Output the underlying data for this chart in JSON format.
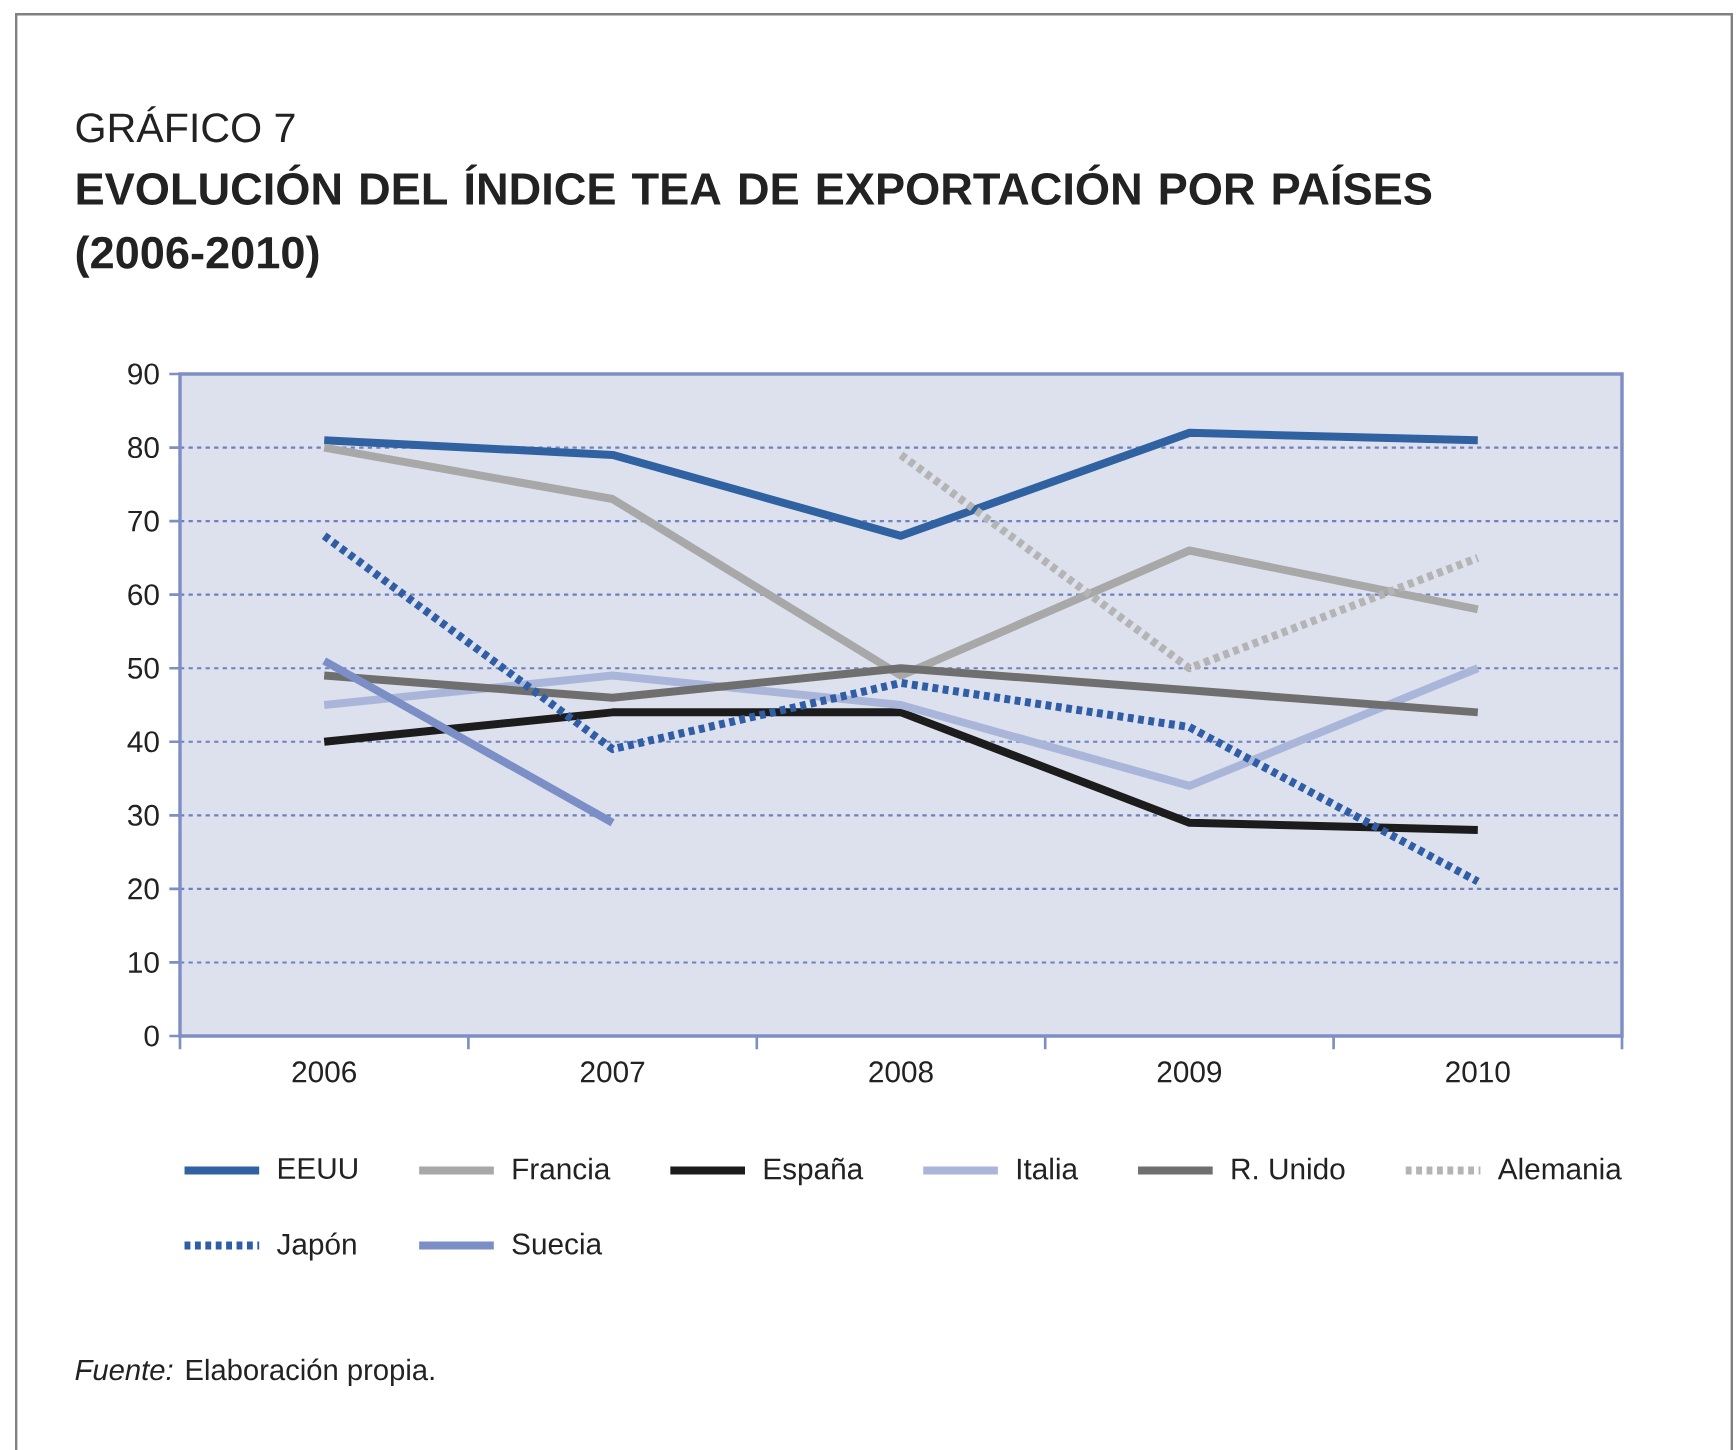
{
  "chart_data": {
    "type": "line",
    "title": "EVOLUCIÓN DEL ÍNDICE TEA DE EXPORTACIÓN POR PAÍSES (2006-2010)",
    "annotations": [
      "GRÁFICO 7",
      "*Fuente:* Elaboración propia."
    ],
    "categories": [
      "2006",
      "2007",
      "2008",
      "2009",
      "2010"
    ],
    "series": [
      {
        "name": "EEUU",
        "color": "#3062a2",
        "line_style": "solid",
        "values": [
          81,
          79,
          68,
          82,
          81
        ]
      },
      {
        "name": "Francia",
        "color": "#a8a8a8",
        "line_style": "solid",
        "values": [
          80,
          73,
          49,
          66,
          58
        ]
      },
      {
        "name": "España",
        "color": "#1c1c1c",
        "line_style": "solid",
        "values": [
          40,
          44,
          44,
          29,
          28
        ]
      },
      {
        "name": "Italia",
        "color": "#a9b6da",
        "line_style": "solid",
        "values": [
          45,
          49,
          45,
          34,
          50
        ]
      },
      {
        "name": "R. Unido",
        "color": "#6f6f6f",
        "line_style": "solid",
        "values": [
          49,
          46,
          50,
          47,
          44
        ]
      },
      {
        "name": "Alemania",
        "color": "#b4b4b4",
        "line_style": "dotted",
        "values": [
          null,
          null,
          79,
          50,
          65
        ]
      },
      {
        "name": "Japón",
        "color": "#2f5ea6",
        "line_style": "dotted",
        "values": [
          68,
          39,
          48,
          42,
          21
        ]
      },
      {
        "name": "Suecia",
        "color": "#7b8ec6",
        "line_style": "solid",
        "values": [
          51,
          29,
          null,
          null,
          null
        ]
      }
    ],
    "ylim": [
      0,
      90
    ],
    "yticks": [
      0,
      10,
      20,
      30,
      40,
      50,
      60,
      70,
      80,
      90
    ],
    "grid": "y",
    "legend": "bottom"
  }
}
